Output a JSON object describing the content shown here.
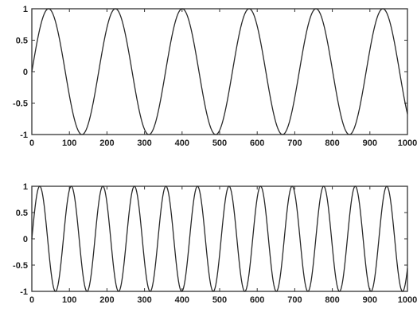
{
  "chart_data": [
    {
      "type": "line",
      "title": "",
      "xlabel": "",
      "ylabel": "",
      "xlim": [
        0,
        1000
      ],
      "ylim": [
        -1,
        1
      ],
      "grid": false,
      "xticks": [
        0,
        100,
        200,
        300,
        400,
        500,
        600,
        700,
        800,
        900,
        1000
      ],
      "yticks": [
        1,
        0.5,
        0,
        -0.5,
        -1
      ],
      "xtick_labels": [
        "0",
        "100",
        "200",
        "300",
        "400",
        "500",
        "600",
        "700",
        "800",
        "900",
        "1000"
      ],
      "ytick_labels": [
        "1",
        "0.5",
        "0",
        "-0.5",
        "-1"
      ],
      "series": [
        {
          "function": "sin",
          "period": 178,
          "amplitude": 1,
          "x_start": 0,
          "x_end": 1000,
          "line_color": "#2a2a2a"
        }
      ]
    },
    {
      "type": "line",
      "title": "",
      "xlabel": "",
      "ylabel": "",
      "xlim": [
        0,
        1000
      ],
      "ylim": [
        -1,
        1
      ],
      "grid": false,
      "xticks": [
        0,
        100,
        200,
        300,
        400,
        500,
        600,
        700,
        800,
        900,
        1000
      ],
      "yticks": [
        1,
        0.5,
        0,
        -0.5,
        -1
      ],
      "xtick_labels": [
        "0",
        "100",
        "200",
        "300",
        "400",
        "500",
        "600",
        "700",
        "800",
        "900",
        "1000"
      ],
      "ytick_labels": [
        "1",
        "0.5",
        "0",
        "-0.5",
        "-1"
      ],
      "series": [
        {
          "function": "sin",
          "period": 84,
          "amplitude": 1,
          "x_start": 0,
          "x_end": 1000,
          "line_color": "#2a2a2a"
        }
      ]
    }
  ]
}
